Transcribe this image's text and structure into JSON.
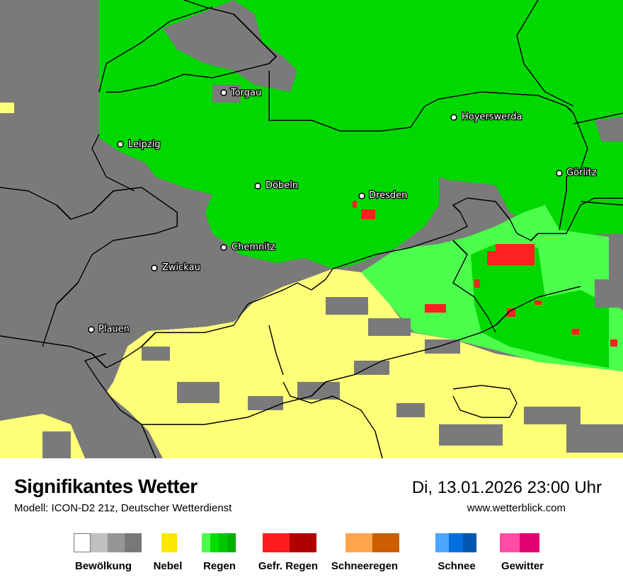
{
  "title": "Signifikantes Wetter",
  "model": "Modell: ICON-D2 21z, Deutscher Wetterdienst",
  "datetime": "Di, 13.01.2026 23:00 Uhr",
  "website": "www.wetterblick.com",
  "colors": {
    "cloud": "#7a7a7a",
    "fog": "#ffff78",
    "rain_light": "#4cff4c",
    "rain": "#00d800",
    "freezing_rain": "#ff2020"
  },
  "cities": [
    {
      "name": "Torgau"
    },
    {
      "name": "Leipzig"
    },
    {
      "name": "Döbeln"
    },
    {
      "name": "Dresden"
    },
    {
      "name": "Hoyerswerda"
    },
    {
      "name": "Görlitz"
    },
    {
      "name": "Chemnitz"
    },
    {
      "name": "Zwickau"
    },
    {
      "name": "Plauen"
    }
  ],
  "legend": [
    {
      "label": "Bewölkung",
      "colors": [
        "#ffffff",
        "#c0c0c0",
        "#969696",
        "#787878"
      ]
    },
    {
      "label": "Nebel",
      "colors": [
        "#ffe800"
      ]
    },
    {
      "label": "Regen",
      "colors": [
        "#4cff4c",
        "#00e000",
        "#00c800",
        "#00b000"
      ]
    },
    {
      "label": "Gefr. Regen",
      "colors": [
        "#ff1c1c",
        "#b00000"
      ]
    },
    {
      "label": "Schneeregen",
      "colors": [
        "#ffa54c",
        "#cc5f00"
      ]
    },
    {
      "label": "Schnee",
      "colors": [
        "#4ca5ff",
        "#0070e0",
        "#0058b0"
      ]
    },
    {
      "label": "Gewitter",
      "colors": [
        "#ff4ca5",
        "#e00070"
      ]
    }
  ]
}
